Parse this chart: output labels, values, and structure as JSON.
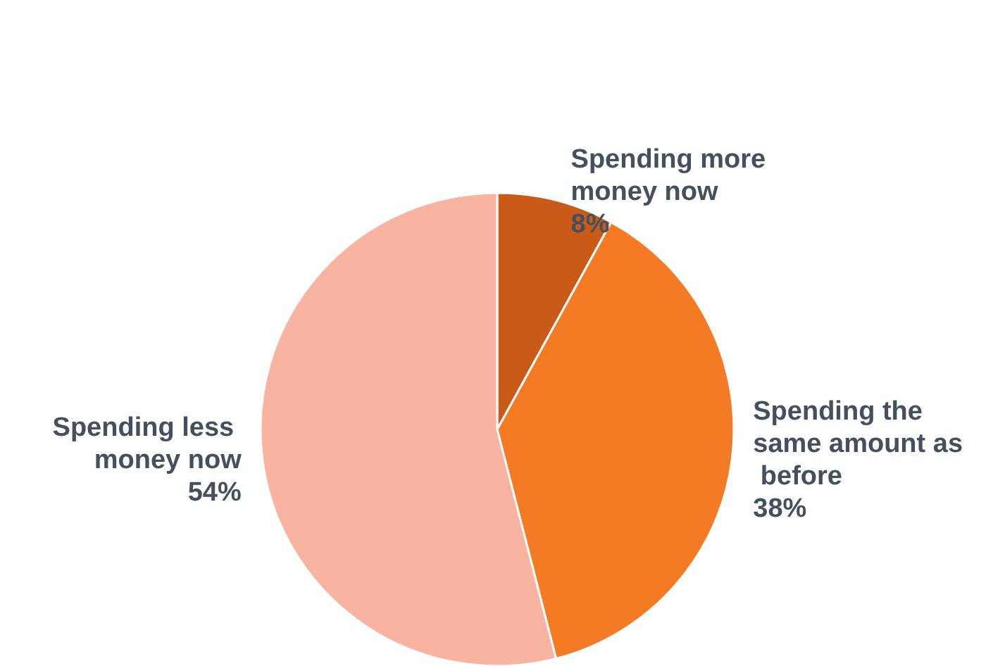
{
  "chart_data": {
    "type": "pie",
    "categories": [
      "Spending more money now",
      "Spending the same amount as before",
      "Spending less money now"
    ],
    "values": [
      8,
      38,
      54
    ],
    "value_labels": [
      "8%",
      "38%",
      "54%"
    ],
    "colors": [
      "#c95a18",
      "#f47a23",
      "#f8b4a0"
    ],
    "legend": false
  }
}
